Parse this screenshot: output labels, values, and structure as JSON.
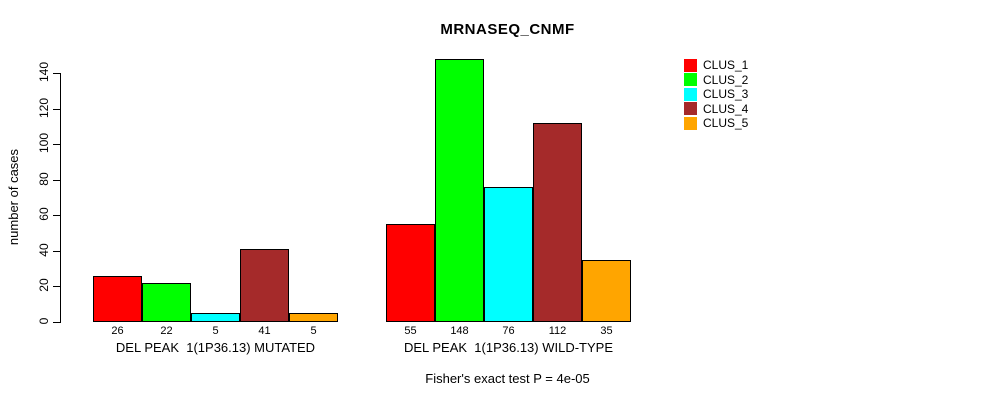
{
  "title": "MRNASEQ_CNMF",
  "y_axis": {
    "label": "number of cases",
    "ticks": [
      0,
      20,
      40,
      60,
      80,
      100,
      120,
      140
    ]
  },
  "footer": "Fisher's exact test P = 4e-05",
  "legend": {
    "items": [
      {
        "label": "CLUS_1",
        "color": "#FF0000"
      },
      {
        "label": "CLUS_2",
        "color": "#00FF00"
      },
      {
        "label": "CLUS_3",
        "color": "#00FFFF"
      },
      {
        "label": "CLUS_4",
        "color": "#A52A2A"
      },
      {
        "label": "CLUS_5",
        "color": "#FFA500"
      }
    ]
  },
  "chart_data": {
    "type": "bar",
    "title": "MRNASEQ_CNMF",
    "xlabel": "",
    "ylabel": "number of cases",
    "ylim": [
      0,
      140
    ],
    "yticks": [
      0,
      20,
      40,
      60,
      80,
      100,
      120,
      140
    ],
    "series_names": [
      "CLUS_1",
      "CLUS_2",
      "CLUS_3",
      "CLUS_4",
      "CLUS_5"
    ],
    "series_colors": [
      "#FF0000",
      "#00FF00",
      "#00FFFF",
      "#A52A2A",
      "#FFA500"
    ],
    "groups": [
      {
        "label": "DEL PEAK  1(1P36.13) MUTATED",
        "values": [
          26,
          22,
          5,
          41,
          5
        ]
      },
      {
        "label": "DEL PEAK  1(1P36.13) WILD-TYPE",
        "values": [
          55,
          148,
          76,
          112,
          35
        ]
      }
    ],
    "bar_value_labels_shown": true,
    "annotation": "Fisher's exact test P = 4e-05",
    "legend_position": "right",
    "grid": false
  }
}
